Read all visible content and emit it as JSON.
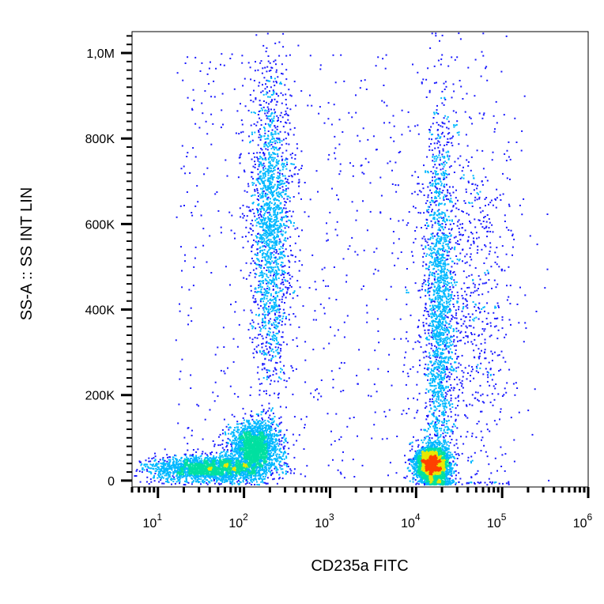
{
  "chart_data": {
    "type": "scatter",
    "subtype": "flow-cytometry-density-dot-plot",
    "title": "",
    "xlabel": "CD235a FITC",
    "ylabel": "SS-A :: SS INT LIN",
    "x_scale": "log",
    "y_scale": "linear",
    "xlim": [
      5,
      1000000
    ],
    "ylim": [
      -15000,
      1050000
    ],
    "x_ticks": [
      {
        "value": 10,
        "base": "10",
        "exp": "1"
      },
      {
        "value": 100,
        "base": "10",
        "exp": "2"
      },
      {
        "value": 1000,
        "base": "10",
        "exp": "3"
      },
      {
        "value": 10000,
        "base": "10",
        "exp": "4"
      },
      {
        "value": 100000,
        "base": "10",
        "exp": "5"
      },
      {
        "value": 1000000,
        "base": "10",
        "exp": "6"
      }
    ],
    "y_ticks": [
      {
        "value": 0,
        "label": "0"
      },
      {
        "value": 200000,
        "label": "200K"
      },
      {
        "value": 400000,
        "label": "400K"
      },
      {
        "value": 600000,
        "label": "600K"
      },
      {
        "value": 800000,
        "label": "800K"
      },
      {
        "value": 1000000,
        "label": "1,0M"
      }
    ],
    "grid": false,
    "legend": "none",
    "color_scale": [
      "#1a1aff",
      "#00b8ff",
      "#00e0a0",
      "#e8e800",
      "#ff4000"
    ],
    "populations": [
      {
        "x_center": 40,
        "y_center": 30000,
        "x_spread_decades": 0.35,
        "y_spread": 15000,
        "density": "high"
      },
      {
        "x_center": 130,
        "y_center": 80000,
        "x_spread_decades": 0.15,
        "y_spread": 30000,
        "density": "medium"
      },
      {
        "x_center": 200,
        "y_center": 600000,
        "x_spread_decades": 0.12,
        "y_spread": 180000,
        "density": "medium"
      },
      {
        "x_center": 15000,
        "y_center": 40000,
        "x_spread_decades": 0.1,
        "y_spread": 20000,
        "density": "very-high"
      },
      {
        "x_center": 18000,
        "y_center": 350000,
        "x_spread_decades": 0.08,
        "y_spread": 250000,
        "density": "medium"
      },
      {
        "x_center": 40000,
        "y_center": 400000,
        "x_spread_decades": 0.3,
        "y_spread": 250000,
        "density": "low"
      }
    ]
  }
}
